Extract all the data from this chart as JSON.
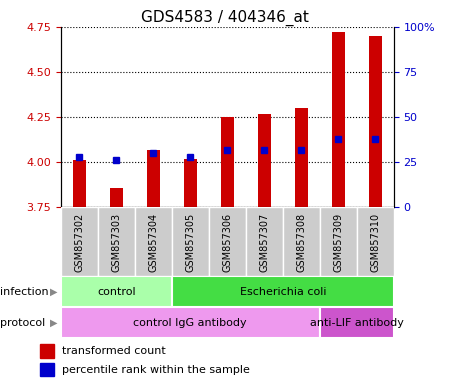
{
  "title": "GDS4583 / 404346_at",
  "samples": [
    "GSM857302",
    "GSM857303",
    "GSM857304",
    "GSM857305",
    "GSM857306",
    "GSM857307",
    "GSM857308",
    "GSM857309",
    "GSM857310"
  ],
  "transformed_count": [
    4.01,
    3.86,
    4.07,
    4.02,
    4.25,
    4.27,
    4.3,
    4.72,
    4.7
  ],
  "percentile_rank": [
    28,
    26,
    30,
    28,
    32,
    32,
    32,
    38,
    38
  ],
  "ylim_left": [
    3.75,
    4.75
  ],
  "ylim_right": [
    0,
    100
  ],
  "yticks_left": [
    3.75,
    4.0,
    4.25,
    4.5,
    4.75
  ],
  "yticks_right": [
    0,
    25,
    50,
    75,
    100
  ],
  "bar_color": "#cc0000",
  "dot_color": "#0000cc",
  "infection_groups": [
    {
      "label": "control",
      "start": 0,
      "end": 3,
      "color": "#aaffaa"
    },
    {
      "label": "Escherichia coli",
      "start": 3,
      "end": 9,
      "color": "#44dd44"
    }
  ],
  "protocol_groups": [
    {
      "label": "control IgG antibody",
      "start": 0,
      "end": 7,
      "color": "#ee99ee"
    },
    {
      "label": "anti-LIF antibody",
      "start": 7,
      "end": 9,
      "color": "#cc55cc"
    }
  ],
  "infection_label": "infection",
  "protocol_label": "protocol",
  "legend_items": [
    {
      "color": "#cc0000",
      "label": "transformed count"
    },
    {
      "color": "#0000cc",
      "label": "percentile rank within the sample"
    }
  ],
  "sample_bg_color": "#cccccc",
  "plot_bg": "#ffffff",
  "bar_width": 0.35
}
